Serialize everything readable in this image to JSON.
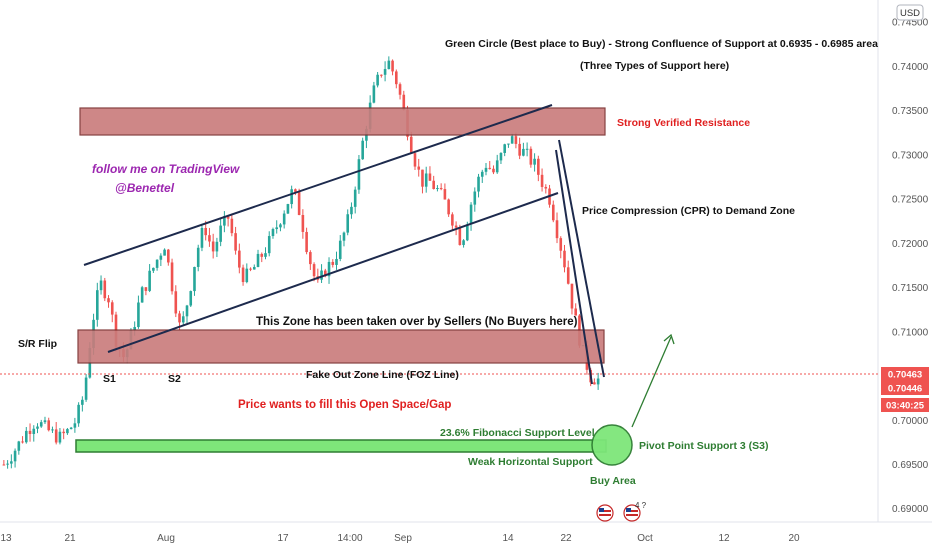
{
  "currency_badge": "USD",
  "price_axis": {
    "ticks": [
      "0.74500",
      "0.74000",
      "0.73500",
      "0.73000",
      "0.72500",
      "0.72000",
      "0.71500",
      "0.71000",
      "0.70500",
      "0.70000",
      "0.69500",
      "0.69000"
    ],
    "current_price_labels": [
      {
        "text": "0.70463",
        "color": "#ef5350"
      },
      {
        "text": "0.70446",
        "color": "#ef5350"
      },
      {
        "text": "03:40:25",
        "color": "#ef5350"
      }
    ]
  },
  "time_axis": {
    "ticks": [
      "13",
      "21",
      "Aug",
      "17",
      "14:00",
      "Sep",
      "14",
      "22",
      "Oct",
      "12",
      "20"
    ]
  },
  "annotations": {
    "green_circle_note": "Green Circle (Best place to Buy) - Strong Confluence of Support at 0.6935 - 0.6985 area",
    "three_types": "(Three Types of Support here)",
    "resistance": "Strong Verified Resistance",
    "follow": "follow me on TradingView",
    "handle": "@Benettel",
    "cpr": "Price Compression (CPR) to Demand Zone",
    "sr_flip": "S/R Flip",
    "zone_taken": "This Zone has been taken over by Sellers (No Buyers here)",
    "s1": "S1",
    "s2": "S2",
    "foz": "Fake Out Zone Line (FOZ Line)",
    "gap": "Price wants to fill this Open Space/Gap",
    "fib": "23.6% Fibonacci Support Level",
    "weak": "Weak Horizontal Support",
    "pivot": "Pivot Point Support 3 (S3)",
    "buy_area": "Buy Area"
  },
  "event_badges": [
    "",
    "4 ?"
  ],
  "colors": {
    "up_candle": "#26a69a",
    "down_candle": "#ef5350",
    "resistance_zone": "#c97b7b",
    "support_bar": "#7ee67a",
    "buy_circle": "#7ee67a",
    "channel_line": "#1d2a4d",
    "annotation_red": "#e02020",
    "annotation_green": "#2e7d32",
    "annotation_purple": "#9c27b0"
  },
  "chart_data": {
    "type": "candlestick",
    "y_range": [
      0.6885,
      0.7475
    ],
    "zones": [
      {
        "name": "Strong Verified Resistance",
        "low": 0.732,
        "high": 0.735
      },
      {
        "name": "Sellers zone",
        "low": 0.7063,
        "high": 0.7096
      }
    ],
    "support_levels": [
      0.6965
    ],
    "current_price": 0.70463,
    "series": [
      {
        "name": "price",
        "close": [
          0.695,
          0.6962,
          0.6975,
          0.699,
          0.7,
          0.6992,
          0.6985,
          0.698,
          0.6988,
          0.7,
          0.703,
          0.711,
          0.7155,
          0.714,
          0.709,
          0.707,
          0.71,
          0.714,
          0.716,
          0.718,
          0.72,
          0.715,
          0.71,
          0.714,
          0.719,
          0.722,
          0.719,
          0.7215,
          0.723,
          0.718,
          0.716,
          0.717,
          0.7185,
          0.72,
          0.722,
          0.724,
          0.726,
          0.723,
          0.7185,
          0.715,
          0.717,
          0.718,
          0.72,
          0.723,
          0.728,
          0.733,
          0.737,
          0.7395,
          0.7405,
          0.738,
          0.734,
          0.73,
          0.727,
          0.727,
          0.726,
          0.7245,
          0.7225,
          0.72,
          0.724,
          0.727,
          0.729,
          0.728,
          0.73,
          0.732,
          0.731,
          0.73,
          0.729,
          0.727,
          0.725,
          0.721,
          0.717,
          0.712,
          0.708,
          0.705,
          0.7046
        ]
      }
    ]
  }
}
